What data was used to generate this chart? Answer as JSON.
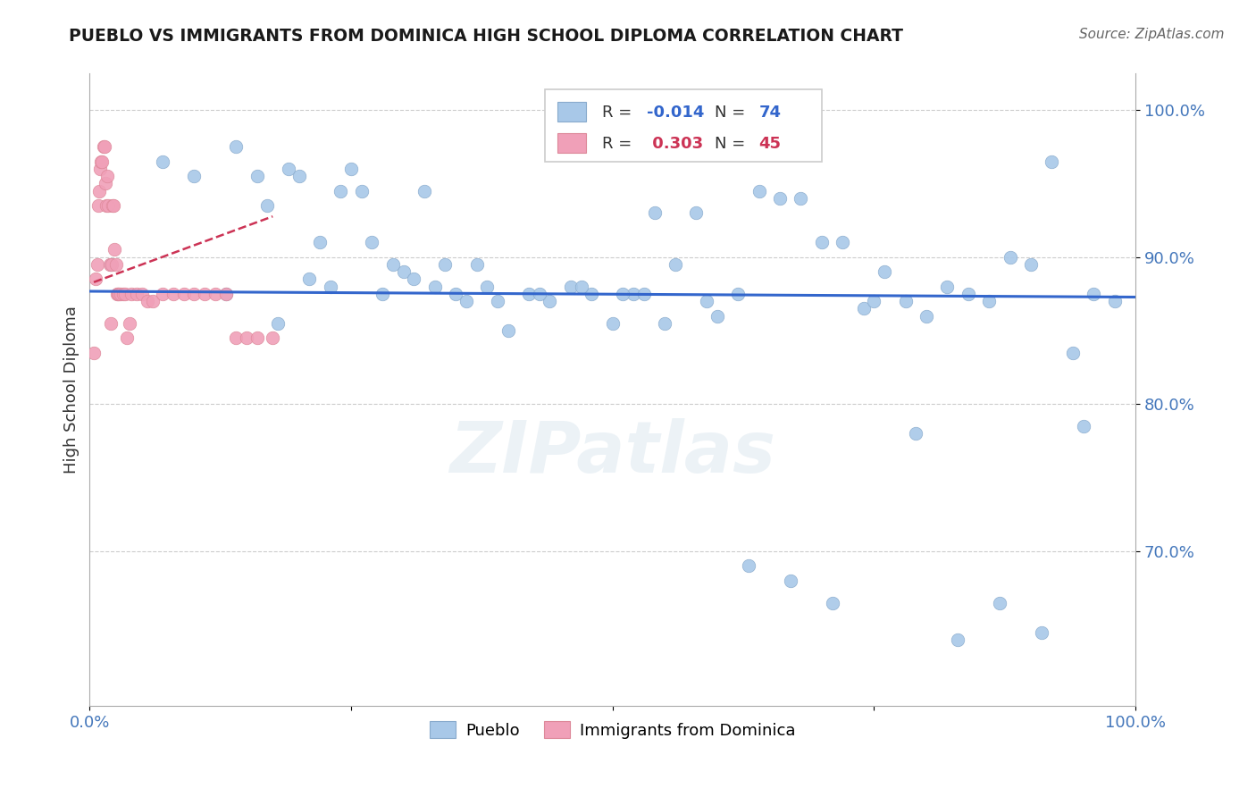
{
  "title": "PUEBLO VS IMMIGRANTS FROM DOMINICA HIGH SCHOOL DIPLOMA CORRELATION CHART",
  "source": "Source: ZipAtlas.com",
  "ylabel": "High School Diploma",
  "r_pueblo": -0.014,
  "n_pueblo": 74,
  "r_dominica": 0.303,
  "n_dominica": 45,
  "blue_color": "#a8c8e8",
  "pink_color": "#f0a0b8",
  "blue_line_color": "#3366cc",
  "pink_line_color": "#cc3355",
  "bg_color": "#ffffff",
  "xlim": [
    0.0,
    1.0
  ],
  "ylim": [
    0.595,
    1.025
  ],
  "yticks": [
    0.7,
    0.8,
    0.9,
    1.0
  ],
  "ytick_labels": [
    "70.0%",
    "80.0%",
    "90.0%",
    "100.0%"
  ],
  "pueblo_x": [
    0.02,
    0.07,
    0.1,
    0.14,
    0.16,
    0.17,
    0.19,
    0.2,
    0.21,
    0.22,
    0.24,
    0.25,
    0.26,
    0.27,
    0.28,
    0.3,
    0.31,
    0.32,
    0.34,
    0.35,
    0.36,
    0.38,
    0.4,
    0.42,
    0.44,
    0.46,
    0.48,
    0.5,
    0.52,
    0.54,
    0.56,
    0.58,
    0.6,
    0.62,
    0.64,
    0.66,
    0.68,
    0.7,
    0.72,
    0.74,
    0.76,
    0.78,
    0.8,
    0.82,
    0.84,
    0.86,
    0.88,
    0.9,
    0.92,
    0.94,
    0.96,
    0.98,
    0.13,
    0.23,
    0.29,
    0.33,
    0.37,
    0.43,
    0.47,
    0.51,
    0.55,
    0.59,
    0.63,
    0.67,
    0.71,
    0.75,
    0.79,
    0.83,
    0.87,
    0.91,
    0.95,
    0.18,
    0.39,
    0.53
  ],
  "pueblo_y": [
    0.895,
    0.965,
    0.955,
    0.975,
    0.955,
    0.935,
    0.96,
    0.955,
    0.885,
    0.91,
    0.945,
    0.96,
    0.945,
    0.91,
    0.875,
    0.89,
    0.885,
    0.945,
    0.895,
    0.875,
    0.87,
    0.88,
    0.85,
    0.875,
    0.87,
    0.88,
    0.875,
    0.855,
    0.875,
    0.93,
    0.895,
    0.93,
    0.86,
    0.875,
    0.945,
    0.94,
    0.94,
    0.91,
    0.91,
    0.865,
    0.89,
    0.87,
    0.86,
    0.88,
    0.875,
    0.87,
    0.9,
    0.895,
    0.965,
    0.835,
    0.875,
    0.87,
    0.875,
    0.88,
    0.895,
    0.88,
    0.895,
    0.875,
    0.88,
    0.875,
    0.855,
    0.87,
    0.69,
    0.68,
    0.665,
    0.87,
    0.78,
    0.64,
    0.665,
    0.645,
    0.785,
    0.855,
    0.87,
    0.875
  ],
  "dominica_x": [
    0.004,
    0.006,
    0.007,
    0.008,
    0.009,
    0.01,
    0.011,
    0.012,
    0.013,
    0.014,
    0.015,
    0.016,
    0.017,
    0.018,
    0.019,
    0.02,
    0.021,
    0.022,
    0.023,
    0.024,
    0.025,
    0.026,
    0.027,
    0.028,
    0.03,
    0.032,
    0.034,
    0.036,
    0.038,
    0.04,
    0.045,
    0.05,
    0.055,
    0.06,
    0.07,
    0.08,
    0.09,
    0.1,
    0.11,
    0.12,
    0.13,
    0.14,
    0.15,
    0.16,
    0.175
  ],
  "dominica_y": [
    0.835,
    0.885,
    0.895,
    0.935,
    0.945,
    0.96,
    0.965,
    0.965,
    0.975,
    0.975,
    0.95,
    0.935,
    0.955,
    0.935,
    0.895,
    0.855,
    0.895,
    0.935,
    0.935,
    0.905,
    0.895,
    0.875,
    0.875,
    0.875,
    0.875,
    0.875,
    0.875,
    0.845,
    0.855,
    0.875,
    0.875,
    0.875,
    0.87,
    0.87,
    0.875,
    0.875,
    0.875,
    0.875,
    0.875,
    0.875,
    0.875,
    0.845,
    0.845,
    0.845,
    0.845
  ]
}
